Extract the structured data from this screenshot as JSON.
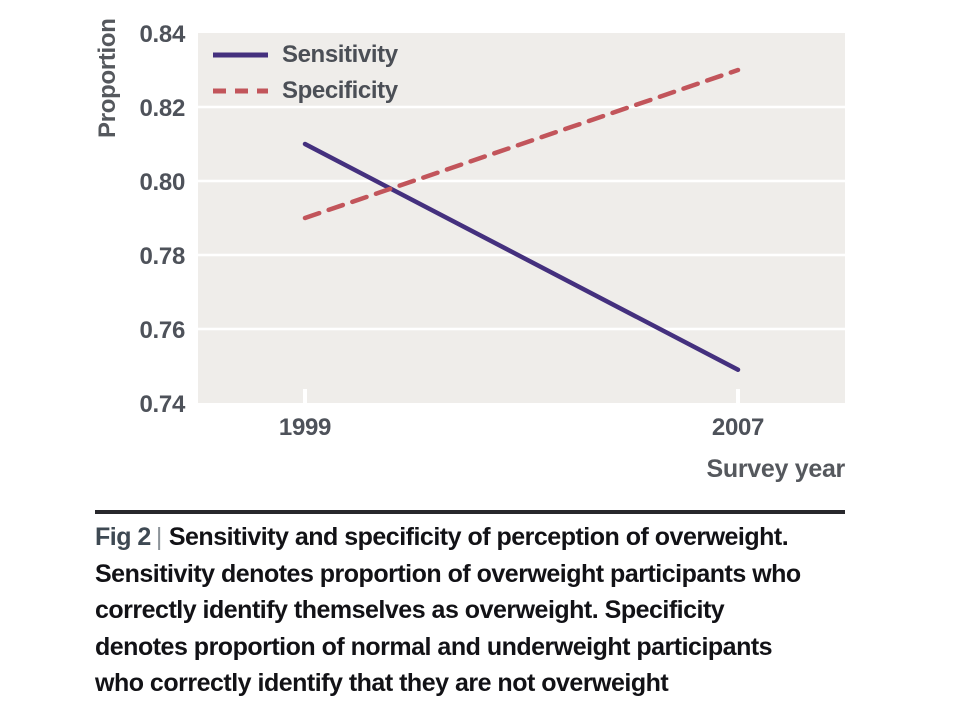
{
  "figure": {
    "caption": {
      "fig_label": "Fig 2",
      "separator": "|",
      "lines": [
        "Sensitivity and specificity of perception of overweight.",
        "Sensitivity denotes proportion of overweight participants who",
        "correctly identify themselves as overweight. Specificity",
        "denotes proportion of normal and underweight participants",
        "who correctly identify that they are not overweight"
      ]
    }
  },
  "chart_data": {
    "type": "line",
    "title": "",
    "xlabel": "Survey year",
    "ylabel": "Proportion",
    "categories": [
      "1999",
      "2007"
    ],
    "series": [
      {
        "name": "Sensitivity",
        "values": [
          0.81,
          0.749
        ],
        "color": "#44307e",
        "style": "solid"
      },
      {
        "name": "Specificity",
        "values": [
          0.79,
          0.83
        ],
        "color": "#c2555b",
        "style": "dashed"
      }
    ],
    "ylim": [
      0.74,
      0.84
    ],
    "yticks": [
      0.74,
      0.76,
      0.78,
      0.8,
      0.82,
      0.84
    ],
    "grid": true,
    "legend_position": "top-left",
    "colors": {
      "plot_background": "#efedea",
      "gridline": "#ffffff",
      "tick_mark": "#ffffff",
      "axis_text": "#4e525a",
      "axis_title_text": "#55585d",
      "caption_text": "#121216"
    }
  }
}
